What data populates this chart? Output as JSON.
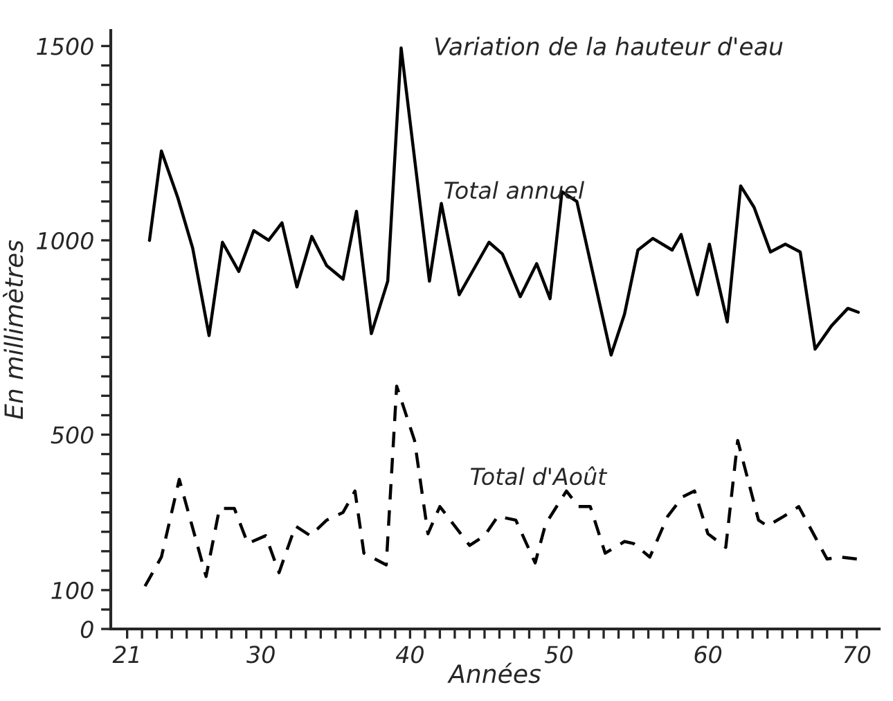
{
  "chart_data": {
    "type": "line",
    "title": "Variation de la hauteur d'eau",
    "xlabel": "Années",
    "ylabel": "En millimètres",
    "xlim": [
      19.9,
      71.5
    ],
    "ylim": [
      0,
      1540
    ],
    "xticks": [
      {
        "value": 21,
        "label": "21"
      },
      {
        "value": 22,
        "label": null
      },
      {
        "value": 23,
        "label": null
      },
      {
        "value": 24,
        "label": null
      },
      {
        "value": 25,
        "label": null
      },
      {
        "value": 26,
        "label": null
      },
      {
        "value": 27,
        "label": null
      },
      {
        "value": 28,
        "label": null
      },
      {
        "value": 29,
        "label": null
      },
      {
        "value": 30,
        "label": "30"
      },
      {
        "value": 31,
        "label": null
      },
      {
        "value": 32,
        "label": null
      },
      {
        "value": 33,
        "label": null
      },
      {
        "value": 34,
        "label": null
      },
      {
        "value": 35,
        "label": null
      },
      {
        "value": 36,
        "label": null
      },
      {
        "value": 37,
        "label": null
      },
      {
        "value": 38,
        "label": null
      },
      {
        "value": 39,
        "label": null
      },
      {
        "value": 40,
        "label": "40"
      },
      {
        "value": 41,
        "label": null
      },
      {
        "value": 42,
        "label": null
      },
      {
        "value": 43,
        "label": null
      },
      {
        "value": 44,
        "label": null
      },
      {
        "value": 45,
        "label": null
      },
      {
        "value": 46,
        "label": null
      },
      {
        "value": 47,
        "label": null
      },
      {
        "value": 48,
        "label": null
      },
      {
        "value": 49,
        "label": null
      },
      {
        "value": 50,
        "label": "50"
      },
      {
        "value": 51,
        "label": null
      },
      {
        "value": 52,
        "label": null
      },
      {
        "value": 53,
        "label": null
      },
      {
        "value": 54,
        "label": null
      },
      {
        "value": 55,
        "label": null
      },
      {
        "value": 56,
        "label": null
      },
      {
        "value": 57,
        "label": null
      },
      {
        "value": 58,
        "label": null
      },
      {
        "value": 59,
        "label": null
      },
      {
        "value": 60,
        "label": "60"
      },
      {
        "value": 61,
        "label": null
      },
      {
        "value": 62,
        "label": null
      },
      {
        "value": 63,
        "label": null
      },
      {
        "value": 64,
        "label": null
      },
      {
        "value": 65,
        "label": null
      },
      {
        "value": 66,
        "label": null
      },
      {
        "value": 67,
        "label": null
      },
      {
        "value": 68,
        "label": null
      },
      {
        "value": 69,
        "label": null
      },
      {
        "value": 70,
        "label": "70"
      }
    ],
    "yticks": [
      {
        "value": 0,
        "label": "0"
      },
      {
        "value": 50,
        "label": null
      },
      {
        "value": 100,
        "label": "100"
      },
      {
        "value": 150,
        "label": null
      },
      {
        "value": 200,
        "label": null
      },
      {
        "value": 250,
        "label": null
      },
      {
        "value": 300,
        "label": null
      },
      {
        "value": 350,
        "label": null
      },
      {
        "value": 400,
        "label": null
      },
      {
        "value": 450,
        "label": null
      },
      {
        "value": 500,
        "label": "500"
      },
      {
        "value": 550,
        "label": null
      },
      {
        "value": 600,
        "label": null
      },
      {
        "value": 650,
        "label": null
      },
      {
        "value": 700,
        "label": null
      },
      {
        "value": 750,
        "label": null
      },
      {
        "value": 800,
        "label": null
      },
      {
        "value": 850,
        "label": null
      },
      {
        "value": 900,
        "label": null
      },
      {
        "value": 950,
        "label": null
      },
      {
        "value": 1000,
        "label": "1000"
      },
      {
        "value": 1050,
        "label": null
      },
      {
        "value": 1100,
        "label": null
      },
      {
        "value": 1150,
        "label": null
      },
      {
        "value": 1200,
        "label": null
      },
      {
        "value": 1250,
        "label": null
      },
      {
        "value": 1300,
        "label": null
      },
      {
        "value": 1350,
        "label": null
      },
      {
        "value": 1400,
        "label": null
      },
      {
        "value": 1450,
        "label": null
      },
      {
        "value": 1500,
        "label": "1500"
      }
    ],
    "grid": false,
    "legend": false,
    "marker": "none",
    "series": [
      {
        "name": "Total annuel",
        "color": "#000000",
        "line_style": "solid",
        "x": [
          22.5,
          23.3,
          24.4,
          25.4,
          26.5,
          27.4,
          28.5,
          29.5,
          30.5,
          31.4,
          32.4,
          33.4,
          34.4,
          35.5,
          36.4,
          37.4,
          38.5,
          39.4,
          41.3,
          42.1,
          43.3,
          45.3,
          46.2,
          47.4,
          48.5,
          49.4,
          50.2,
          51.2,
          53.5,
          54.4,
          55.3,
          56.3,
          57.6,
          58.2,
          59.3,
          60.1,
          61.3,
          62.2,
          63.1,
          64.2,
          65.2,
          66.2,
          67.2,
          68.3,
          69.4,
          70.1
        ],
        "values": [
          1000,
          1230,
          1110,
          980,
          755,
          995,
          920,
          1025,
          1000,
          1045,
          880,
          1010,
          935,
          900,
          1075,
          760,
          895,
          1495,
          895,
          1095,
          860,
          995,
          965,
          855,
          940,
          850,
          1125,
          1100,
          705,
          810,
          975,
          1005,
          975,
          1015,
          860,
          990,
          790,
          1140,
          1085,
          970,
          990,
          970,
          720,
          780,
          825,
          815
        ]
      },
      {
        "name": "Total d'Août",
        "color": "#000000",
        "line_style": "dashed",
        "x": [
          22.2,
          23.3,
          24.5,
          26.3,
          27.2,
          28.2,
          29.1,
          30.3,
          31.2,
          32.3,
          33.3,
          34.4,
          35.5,
          36.3,
          36.9,
          38.4,
          39.1,
          40.3,
          41.2,
          42.0,
          44.0,
          45.0,
          45.9,
          47.1,
          48.4,
          49.1,
          50.5,
          51.3,
          52.1,
          53.1,
          54.4,
          55.0,
          56.1,
          57.3,
          58.3,
          59.1,
          60.0,
          61.2,
          62.0,
          63.4,
          64.0,
          65.1,
          66.1,
          68.0,
          68.9,
          70.0
        ],
        "values": [
          110,
          185,
          385,
          135,
          310,
          310,
          220,
          240,
          145,
          265,
          240,
          280,
          300,
          355,
          195,
          165,
          625,
          485,
          245,
          315,
          215,
          240,
          290,
          280,
          170,
          270,
          355,
          315,
          315,
          195,
          225,
          220,
          185,
          290,
          340,
          355,
          245,
          210,
          485,
          280,
          265,
          290,
          315,
          180,
          185,
          180
        ]
      }
    ]
  }
}
